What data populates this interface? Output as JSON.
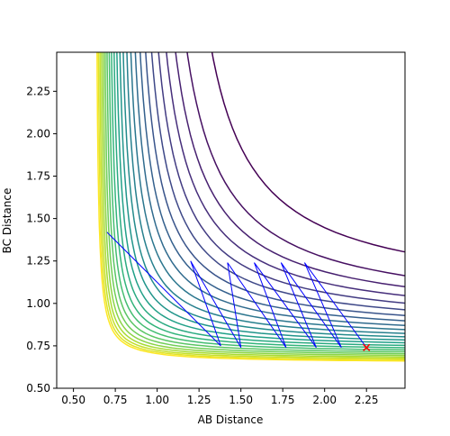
{
  "chart_data": {
    "type": "contour",
    "title": "",
    "xlabel": "AB Distance",
    "ylabel": "BC Distance",
    "xlim": [
      0.4,
      2.48
    ],
    "ylim": [
      0.5,
      2.48
    ],
    "xticks": [
      "0.50",
      "0.75",
      "1.00",
      "1.25",
      "1.50",
      "1.75",
      "2.00",
      "2.25"
    ],
    "yticks": [
      "0.50",
      "0.75",
      "1.00",
      "1.25",
      "1.50",
      "1.75",
      "2.00",
      "2.25"
    ],
    "colormap": "viridis",
    "grid": false,
    "contour_levels": 24,
    "trajectory": {
      "color": "#0000ff",
      "start": [
        0.7,
        1.42
      ],
      "points": [
        [
          0.7,
          1.42
        ],
        [
          1.38,
          0.75
        ],
        [
          1.2,
          1.25
        ],
        [
          1.5,
          0.74
        ],
        [
          1.42,
          1.24
        ],
        [
          1.77,
          0.74
        ],
        [
          1.58,
          1.24
        ],
        [
          1.95,
          0.74
        ],
        [
          1.74,
          1.24
        ],
        [
          2.1,
          0.74
        ],
        [
          1.88,
          1.24
        ],
        [
          2.25,
          0.74
        ]
      ]
    },
    "end_marker": {
      "symbol": "x",
      "color": "#ff0000",
      "x": 2.25,
      "y": 0.74
    }
  }
}
